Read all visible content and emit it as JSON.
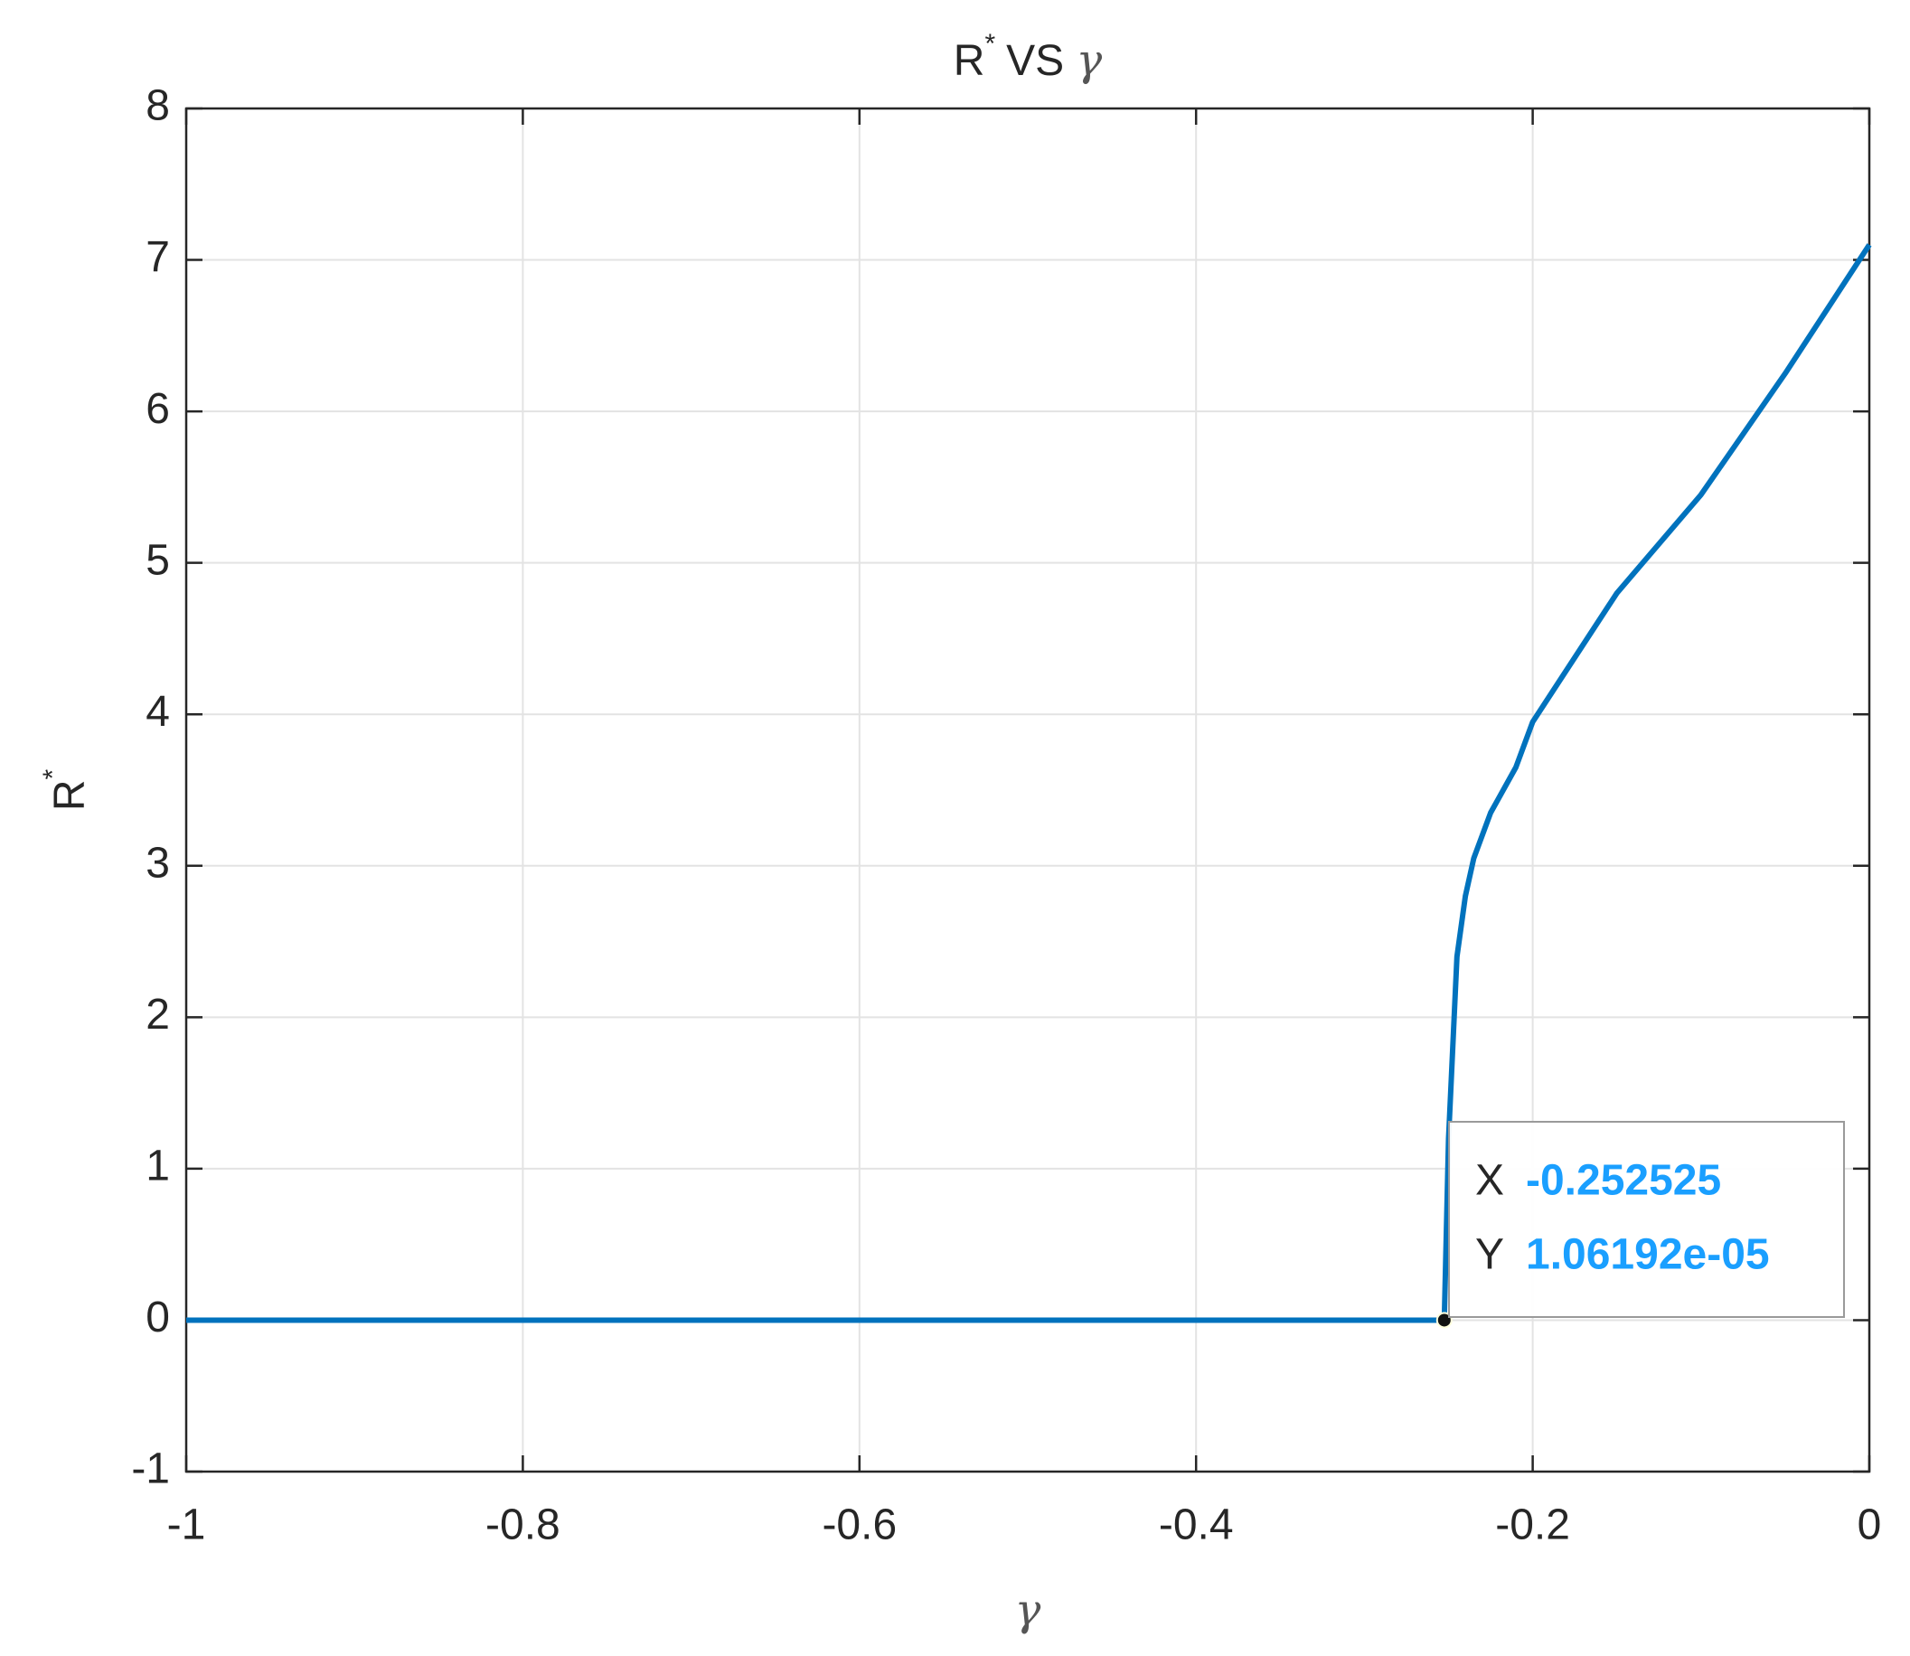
{
  "chart_data": {
    "type": "line",
    "title": [
      "R",
      "*",
      "VS",
      "γ"
    ],
    "xlabel": "γ",
    "ylabel": [
      "R",
      "*"
    ],
    "x": [
      -1,
      -0.252525,
      -0.25,
      -0.245,
      -0.24,
      -0.235,
      -0.225,
      -0.21,
      -0.2,
      -0.15,
      -0.1,
      -0.05,
      0
    ],
    "values": [
      0,
      1.06192e-05,
      1.2,
      2.4,
      2.8,
      3.05,
      3.35,
      3.65,
      3.95,
      4.8,
      5.45,
      6.25,
      7.1
    ],
    "color": "#0072bd",
    "xlim": [
      -1,
      0
    ],
    "xticks": [
      -1,
      -0.8,
      -0.6,
      -0.4,
      -0.2,
      0
    ],
    "ylim": [
      -1,
      8
    ],
    "yticks": [
      -1,
      0,
      1,
      2,
      3,
      4,
      5,
      6,
      7,
      8
    ],
    "grid": true,
    "datatip": {
      "x_name": "X",
      "x": -0.252525,
      "y_name": "Y",
      "y": 1.06192e-05,
      "y_label": "1.06192e-05"
    }
  }
}
